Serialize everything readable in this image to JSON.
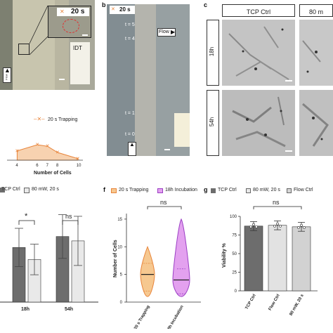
{
  "panel_a": {
    "time_label": "20 s",
    "flow_label": "Flow",
    "idt_label": "IDT"
  },
  "panel_a_chart": {
    "legend": "20 s Trapping",
    "xlabel": "Number of Cells",
    "xticks": [
      "4",
      "6",
      "7",
      "8",
      "10"
    ]
  },
  "panel_b": {
    "letter": "b",
    "time_label": "20 s",
    "flow_top": "Flow",
    "flow_bottom": "Flow",
    "markers": [
      "t = 5",
      "t = 4",
      "t = 1",
      "t = 0"
    ]
  },
  "panel_c": {
    "letter": "c",
    "col_headers": [
      "TCP Ctrl",
      "80 m"
    ],
    "row_labels": [
      "18h",
      "54h"
    ]
  },
  "panel_e": {
    "legend": [
      "TCP Ctrl",
      "80 mW, 20 s"
    ],
    "sig_labels": [
      "*",
      "ns"
    ],
    "categories": [
      "18h",
      "54h"
    ]
  },
  "panel_f": {
    "letter": "f",
    "legend": [
      "20 s Trapping",
      "18h Incubation"
    ],
    "ylabel": "Number of Cells",
    "yticks": [
      "0",
      "5",
      "10",
      "15"
    ],
    "categories": [
      "20 s Trapping",
      "18h Incubation"
    ],
    "sig": "ns"
  },
  "panel_g": {
    "letter": "g",
    "legend": [
      "TCP Ctrl",
      "80 mW, 20 s",
      "Flow Ctrl"
    ],
    "ylabel": "Viability %",
    "yticks": [
      "0",
      "25",
      "50",
      "75",
      "100"
    ],
    "categories": [
      "TCP Ctrl",
      "Flow Ctrl",
      "80 mW, 20 s"
    ],
    "sig": "ns"
  },
  "colors": {
    "orange": "#e8843a",
    "purple": "#9b3fc4",
    "dark_gray": "#6d6d6d",
    "light_gray": "#e9e9e9",
    "mid_gray": "#a8a8a8"
  },
  "chart_data": [
    {
      "type": "area",
      "series": [
        {
          "name": "20 s Trapping",
          "x": [
            4,
            6,
            7,
            8,
            10
          ],
          "y": [
            0.6,
            1.0,
            0.9,
            0.5,
            0.1
          ]
        }
      ],
      "xlabel": "Number of Cells"
    },
    {
      "type": "bar",
      "categories": [
        "18h",
        "54h"
      ],
      "series": [
        {
          "name": "TCP Ctrl",
          "values": [
            1.0,
            1.2
          ],
          "err": [
            0.35,
            0.4
          ]
        },
        {
          "name": "80 mW, 20 s",
          "values": [
            0.78,
            1.12
          ],
          "err": [
            0.28,
            0.45
          ]
        }
      ]
    },
    {
      "type": "violin",
      "categories": [
        "20 s Trapping",
        "18h Incubation"
      ],
      "ylabel": "Number of Cells",
      "ylim": [
        0,
        16
      ],
      "median": [
        5,
        4
      ],
      "range": [
        [
          1,
          10
        ],
        [
          1,
          15
        ]
      ]
    },
    {
      "type": "bar",
      "categories": [
        "TCP Ctrl",
        "Flow Ctrl",
        "80 mW, 20 s"
      ],
      "values": [
        87,
        88,
        86
      ],
      "ylabel": "Viability %",
      "ylim": [
        0,
        100
      ]
    }
  ]
}
